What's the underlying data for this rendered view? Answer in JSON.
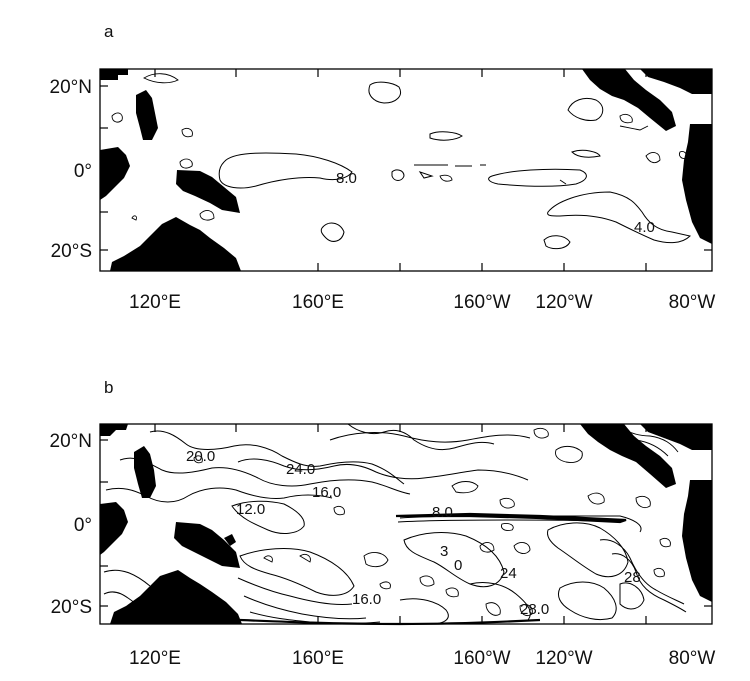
{
  "panels": [
    {
      "letter": "a",
      "contour_labels": [
        "8.0",
        "4.0"
      ]
    },
    {
      "letter": "b",
      "contour_labels": [
        "20.0",
        "24.0",
        "16.0",
        "12.0",
        "8.0",
        "16.0",
        "28.0",
        "3",
        "0",
        "24",
        "28"
      ]
    }
  ],
  "axes": {
    "y_ticks": [
      "20°N",
      "0°",
      "20°S"
    ],
    "x_ticks": [
      "120°E",
      "160°E",
      "160°W",
      "120°W",
      "80°W"
    ]
  },
  "colors": {
    "land": "#000000",
    "ocean": "#ffffff",
    "contour": "#000000"
  }
}
